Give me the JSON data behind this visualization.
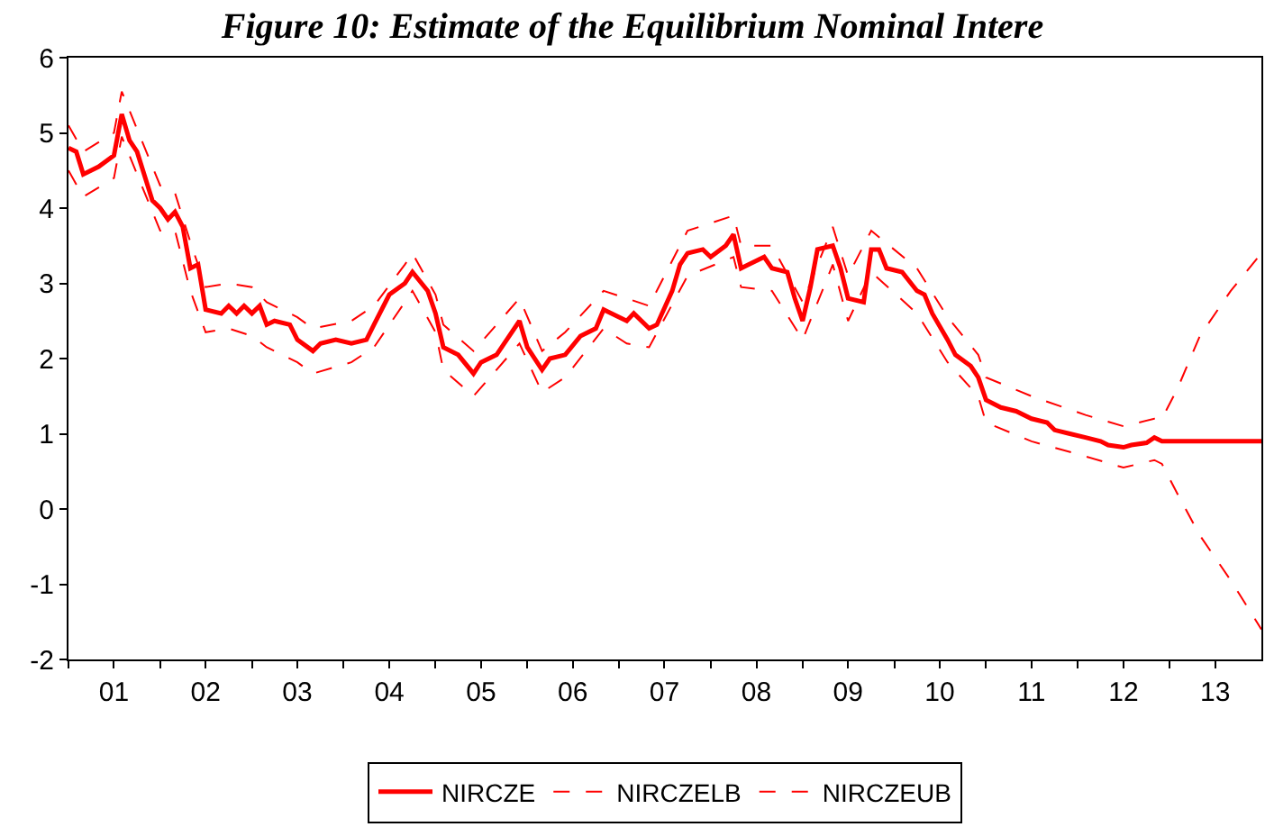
{
  "chart_data": {
    "type": "line",
    "title": "Figure 10: Estimate of the Equilibrium Nominal Intere",
    "xlim": [
      "2001-01",
      "2014-01"
    ],
    "ylim": [
      -2,
      6
    ],
    "yticks": [
      -2,
      -1,
      0,
      1,
      2,
      3,
      4,
      5,
      6
    ],
    "xticks": [
      {
        "value": "2001-01",
        "label": null
      },
      {
        "value": "2001-07",
        "label": "01"
      },
      {
        "value": "2002-01",
        "label": null
      },
      {
        "value": "2002-07",
        "label": "02"
      },
      {
        "value": "2003-01",
        "label": null
      },
      {
        "value": "2003-07",
        "label": "03"
      },
      {
        "value": "2004-01",
        "label": null
      },
      {
        "value": "2004-07",
        "label": "04"
      },
      {
        "value": "2005-01",
        "label": null
      },
      {
        "value": "2005-07",
        "label": "05"
      },
      {
        "value": "2006-01",
        "label": null
      },
      {
        "value": "2006-07",
        "label": "06"
      },
      {
        "value": "2007-01",
        "label": null
      },
      {
        "value": "2007-07",
        "label": "07"
      },
      {
        "value": "2008-01",
        "label": null
      },
      {
        "value": "2008-07",
        "label": "08"
      },
      {
        "value": "2009-01",
        "label": null
      },
      {
        "value": "2009-07",
        "label": "09"
      },
      {
        "value": "2010-01",
        "label": null
      },
      {
        "value": "2010-07",
        "label": "10"
      },
      {
        "value": "2011-01",
        "label": null
      },
      {
        "value": "2011-07",
        "label": "11"
      },
      {
        "value": "2012-01",
        "label": null
      },
      {
        "value": "2012-07",
        "label": "12"
      },
      {
        "value": "2013-01",
        "label": null
      },
      {
        "value": "2013-07",
        "label": "13"
      }
    ],
    "legend": "bottom",
    "marker": "none",
    "series": [
      {
        "name": "NIRCZE",
        "color": "#ff0000",
        "line_style": "solid",
        "x": [
          "2001-01",
          "2001-02",
          "2001-03",
          "2001-05",
          "2001-07",
          "2001-08",
          "2001-09",
          "2001-10",
          "2001-12",
          "2002-01",
          "2002-02",
          "2002-03",
          "2002-04",
          "2002-05",
          "2002-06",
          "2002-07",
          "2002-09",
          "2002-10",
          "2002-11",
          "2002-12",
          "2003-01",
          "2003-02",
          "2003-03",
          "2003-04",
          "2003-06",
          "2003-07",
          "2003-09",
          "2003-10",
          "2003-12",
          "2004-02",
          "2004-04",
          "2004-05",
          "2004-07",
          "2004-09",
          "2004-10",
          "2004-12",
          "2005-01",
          "2005-02",
          "2005-04",
          "2005-06",
          "2005-07",
          "2005-09",
          "2005-10",
          "2005-12",
          "2006-01",
          "2006-03",
          "2006-04",
          "2006-06",
          "2006-08",
          "2006-10",
          "2006-11",
          "2007-01",
          "2007-02",
          "2007-03",
          "2007-05",
          "2007-06",
          "2007-08",
          "2007-09",
          "2007-10",
          "2007-12",
          "2008-01",
          "2008-03",
          "2008-04",
          "2008-05",
          "2008-06",
          "2008-08",
          "2008-09",
          "2008-11",
          "2008-12",
          "2009-01",
          "2009-02",
          "2009-03",
          "2009-05",
          "2009-06",
          "2009-07",
          "2009-09",
          "2009-10",
          "2009-11",
          "2009-12",
          "2010-02",
          "2010-04",
          "2010-05",
          "2010-06",
          "2010-08",
          "2010-09",
          "2010-11",
          "2010-12",
          "2011-01",
          "2011-03",
          "2011-05",
          "2011-07",
          "2011-09",
          "2011-10",
          "2011-12",
          "2012-02",
          "2012-04",
          "2012-05",
          "2012-07",
          "2012-08",
          "2012-10",
          "2012-11",
          "2012-12",
          "2013-12",
          "2014-01"
        ],
        "values": [
          4.8,
          4.75,
          4.45,
          4.55,
          4.7,
          5.25,
          4.9,
          4.75,
          4.1,
          4.0,
          3.85,
          3.95,
          3.75,
          3.2,
          3.25,
          2.65,
          2.6,
          2.7,
          2.6,
          2.7,
          2.6,
          2.7,
          2.45,
          2.5,
          2.45,
          2.25,
          2.1,
          2.2,
          2.25,
          2.2,
          2.25,
          2.45,
          2.85,
          3.0,
          3.15,
          2.9,
          2.6,
          2.15,
          2.05,
          1.8,
          1.95,
          2.05,
          2.2,
          2.5,
          2.15,
          1.85,
          2.0,
          2.05,
          2.3,
          2.4,
          2.65,
          2.55,
          2.5,
          2.6,
          2.4,
          2.45,
          2.9,
          3.25,
          3.4,
          3.45,
          3.35,
          3.5,
          3.65,
          3.2,
          3.25,
          3.35,
          3.2,
          3.15,
          2.8,
          2.5,
          2.95,
          3.45,
          3.5,
          3.2,
          2.8,
          2.75,
          3.45,
          3.45,
          3.2,
          3.15,
          2.9,
          2.85,
          2.6,
          2.25,
          2.05,
          1.9,
          1.75,
          1.45,
          1.35,
          1.3,
          1.2,
          1.15,
          1.05,
          1.0,
          0.95,
          0.9,
          0.85,
          0.82,
          0.85,
          0.88,
          0.95,
          0.9,
          0.9,
          0.9
        ]
      },
      {
        "name": "NIRCZELB",
        "color": "#ff0000",
        "line_style": "dashed",
        "x": [
          "2001-01",
          "2001-03",
          "2001-07",
          "2001-08",
          "2001-10",
          "2002-01",
          "2002-03",
          "2002-05",
          "2002-07",
          "2002-10",
          "2003-01",
          "2003-03",
          "2003-07",
          "2003-09",
          "2004-02",
          "2004-05",
          "2004-09",
          "2004-10",
          "2005-01",
          "2005-02",
          "2005-06",
          "2005-12",
          "2006-03",
          "2006-06",
          "2006-11",
          "2007-02",
          "2007-05",
          "2007-10",
          "2008-04",
          "2008-05",
          "2008-09",
          "2009-01",
          "2009-05",
          "2009-07",
          "2009-10",
          "2010-04",
          "2010-08",
          "2010-12",
          "2011-01",
          "2011-07",
          "2012-02",
          "2012-07",
          "2012-11",
          "2012-12",
          "2013-02",
          "2013-05",
          "2013-09",
          "2014-01"
        ],
        "values": [
          4.5,
          4.15,
          4.4,
          4.95,
          4.45,
          3.7,
          3.7,
          2.9,
          2.35,
          2.4,
          2.3,
          2.15,
          1.95,
          1.8,
          1.95,
          2.15,
          2.75,
          2.9,
          2.35,
          1.85,
          1.5,
          2.2,
          1.55,
          1.75,
          2.4,
          2.2,
          2.15,
          3.1,
          3.35,
          2.95,
          2.9,
          2.25,
          3.25,
          2.5,
          3.15,
          2.6,
          1.95,
          1.5,
          1.15,
          0.9,
          0.7,
          0.55,
          0.65,
          0.6,
          0.2,
          -0.35,
          -0.95,
          -1.6
        ]
      },
      {
        "name": "NIRCZEUB",
        "color": "#ff0000",
        "line_style": "dashed",
        "x": [
          "2001-01",
          "2001-03",
          "2001-07",
          "2001-08",
          "2001-10",
          "2002-01",
          "2002-03",
          "2002-05",
          "2002-07",
          "2002-10",
          "2003-01",
          "2003-03",
          "2003-07",
          "2003-09",
          "2004-02",
          "2004-05",
          "2004-09",
          "2004-10",
          "2005-01",
          "2005-02",
          "2005-06",
          "2005-12",
          "2006-03",
          "2006-06",
          "2006-11",
          "2007-02",
          "2007-05",
          "2007-10",
          "2008-04",
          "2008-05",
          "2008-09",
          "2009-01",
          "2009-05",
          "2009-07",
          "2009-10",
          "2010-04",
          "2010-08",
          "2010-12",
          "2011-01",
          "2011-07",
          "2012-02",
          "2012-07",
          "2012-11",
          "2012-12",
          "2013-02",
          "2013-05",
          "2013-09",
          "2014-01"
        ],
        "values": [
          5.1,
          4.75,
          5.0,
          5.55,
          5.05,
          4.3,
          4.2,
          3.55,
          2.95,
          3.0,
          2.95,
          2.75,
          2.55,
          2.4,
          2.5,
          2.7,
          3.25,
          3.4,
          2.85,
          2.45,
          2.1,
          2.8,
          2.1,
          2.35,
          2.9,
          2.8,
          2.7,
          3.7,
          3.9,
          3.5,
          3.5,
          2.75,
          3.75,
          3.1,
          3.7,
          3.2,
          2.55,
          2.05,
          1.75,
          1.5,
          1.25,
          1.1,
          1.2,
          1.2,
          1.6,
          2.3,
          2.9,
          3.4
        ]
      }
    ]
  }
}
